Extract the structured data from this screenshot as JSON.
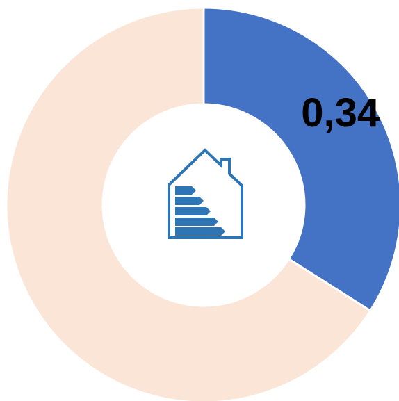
{
  "chart_data": {
    "type": "donut",
    "values": [
      0.34,
      0.66
    ],
    "value_labels": [
      "0,34",
      null
    ],
    "colors": [
      "#4472c4",
      "#fbe5d6"
    ]
  }
}
